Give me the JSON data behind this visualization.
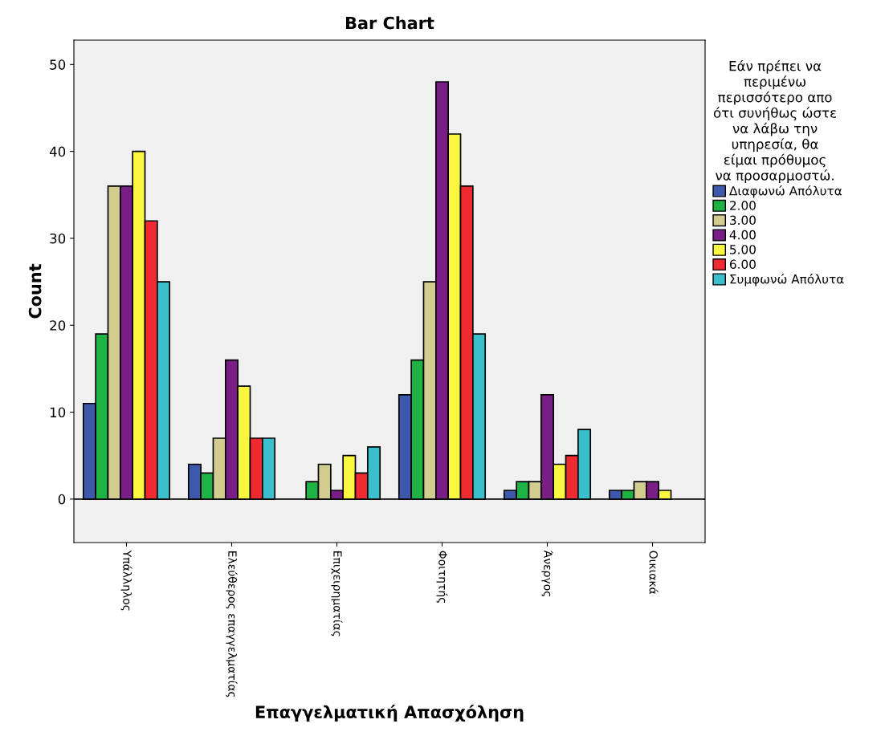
{
  "chart_data": {
    "type": "bar",
    "title": "Bar Chart",
    "xlabel": "Επαγγελματική Απασχόληση",
    "ylabel": "Count",
    "legend_title": "Εάν πρέπει να\nπεριμένω\nπερισσότερο απο\nότι συνήθως ώστε\nνα λάβω την\nυπηρεσία, θα\nείμαι πρόθυμος\nνα προσαρμοστώ.",
    "categories": [
      "Υπάλληλος",
      "Ελεύθερος επαγγελματίας",
      "Επιχειρηματίας",
      "Φοιτητής",
      "Άνεργος",
      "Οικιακά"
    ],
    "series": [
      {
        "name": "Διαφωνώ Απόλυτα",
        "color": "#3e58ac",
        "values": [
          11,
          4,
          null,
          12,
          1,
          1
        ]
      },
      {
        "name": "2.00",
        "color": "#1fb345",
        "values": [
          19,
          3,
          2,
          16,
          2,
          1
        ]
      },
      {
        "name": "3.00",
        "color": "#d2cc8f",
        "values": [
          36,
          7,
          4,
          25,
          2,
          2
        ]
      },
      {
        "name": "4.00",
        "color": "#781e85",
        "values": [
          36,
          16,
          1,
          48,
          12,
          2
        ]
      },
      {
        "name": "5.00",
        "color": "#f9f73f",
        "values": [
          40,
          13,
          5,
          42,
          4,
          1
        ]
      },
      {
        "name": "6.00",
        "color": "#ef2a31",
        "values": [
          32,
          7,
          3,
          36,
          5,
          null
        ]
      },
      {
        "name": "Συμφωνώ Απόλυτα",
        "color": "#3bbfcc",
        "values": [
          25,
          7,
          6,
          19,
          8,
          null
        ]
      }
    ],
    "ref_lines": [
      {
        "axis": "y",
        "value": 0,
        "color": "#000000"
      }
    ],
    "ylim": [
      -5,
      52.8
    ],
    "yticks": [
      0,
      10,
      20,
      30,
      40,
      50
    ],
    "grid": false,
    "legend": "right"
  }
}
